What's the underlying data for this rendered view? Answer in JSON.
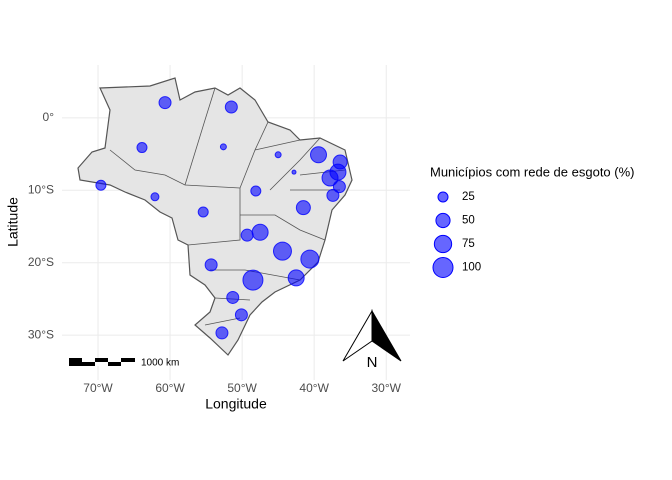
{
  "chart_data": {
    "type": "scatter",
    "x_label": "Longitude",
    "y_label": "Latitude",
    "x": [
      -60.7,
      -51.5,
      -63.9,
      -52.6,
      -69.6,
      -62.1,
      -45.0,
      -42.8,
      -39.4,
      -48.1,
      -55.4,
      -41.5,
      -36.4,
      -36.7,
      -37.8,
      -36.5,
      -37.4,
      -49.3,
      -47.5,
      -44.4,
      -40.6,
      -54.3,
      -48.5,
      -42.5,
      -51.3,
      -50.1,
      -52.8
    ],
    "series": [
      {
        "color": "#0000ff",
        "values": [
          2.1,
          1.5,
          -4.1,
          -4.0,
          -9.3,
          -10.9,
          -5.1,
          -7.5,
          -5.1,
          -10.1,
          -13.0,
          -12.4,
          -6.1,
          -7.5,
          -8.3,
          -9.5,
          -10.7,
          -16.2,
          -15.8,
          -18.4,
          -19.5,
          -20.3,
          -22.4,
          -22.1,
          -24.8,
          -27.2,
          -29.7
        ],
        "sizes": [
          36,
          36,
          25,
          9,
          25,
          16,
          9,
          4,
          64,
          25,
          25,
          49,
          49,
          64,
          64,
          36,
          36,
          36,
          64,
          81,
          81,
          36,
          100,
          64,
          36,
          36,
          36
        ]
      }
    ],
    "size_legend": {
      "title": "Municípios com rede de esgoto (%)",
      "values": [
        25,
        50,
        75,
        100
      ]
    },
    "xlim": [
      -75,
      -26.7
    ],
    "ylim": [
      -36.2,
      7.3
    ],
    "xticks": [
      {
        "value": -70,
        "label": "70°W"
      },
      {
        "value": -60,
        "label": "60°W"
      },
      {
        "value": -50,
        "label": "50°W"
      },
      {
        "value": -40,
        "label": "40°W"
      },
      {
        "value": -30,
        "label": "30°W"
      }
    ],
    "yticks": [
      {
        "value": -30,
        "label": "30°S"
      },
      {
        "value": -20,
        "label": "20°S"
      },
      {
        "value": -10,
        "label": "10°S"
      },
      {
        "value": 0,
        "label": "0°"
      }
    ],
    "grid": true,
    "scale_bar_label": "1000 km",
    "north_label": "N"
  }
}
